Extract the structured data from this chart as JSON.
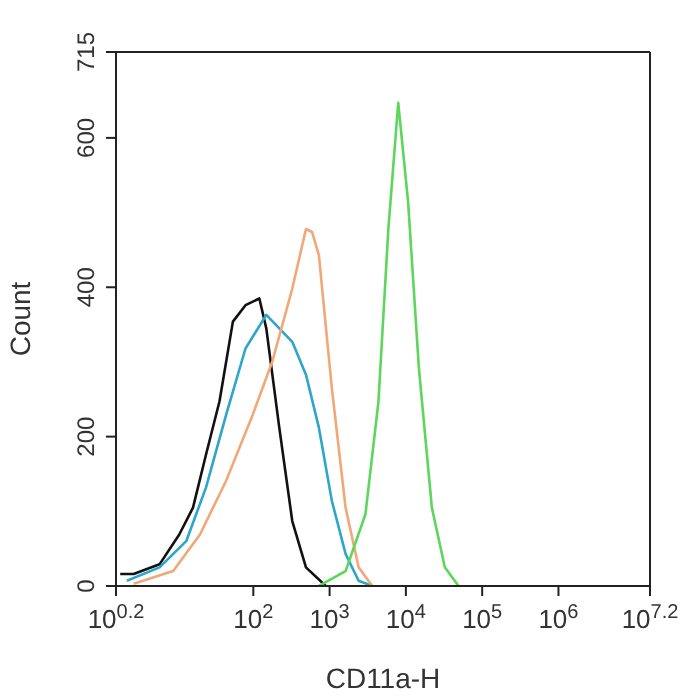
{
  "chart_data": {
    "type": "line",
    "xlabel": "CD11a-H",
    "ylabel": "Count",
    "log": "x",
    "marker": "none",
    "line_style": "solid",
    "xlim": [
      1.585,
      15849000
    ],
    "xticks": [
      {
        "value": 1.585,
        "label": "10$^{0.2}$"
      },
      {
        "value": 100,
        "label": "10$^{2}$"
      },
      {
        "value": 1000,
        "label": "10$^{3}$"
      },
      {
        "value": 10000,
        "label": "10$^{4}$"
      },
      {
        "value": 100000,
        "label": "10$^{5}$"
      },
      {
        "value": 1000000,
        "label": "10$^{6}$"
      },
      {
        "value": 15849000,
        "label": "10$^{7.2}$"
      }
    ],
    "ylim": [
      0,
      715
    ],
    "yticks": [
      0,
      200,
      400,
      600,
      715
    ],
    "series": [
      {
        "color": "#111111",
        "x": [
          1.8,
          2.7,
          5.9,
          10.7,
          16.2,
          24,
          36,
          54,
          79,
          120,
          148,
          219,
          324,
          490,
          891
        ],
        "values": [
          16,
          16,
          29,
          69,
          105,
          176,
          247,
          354,
          376,
          385,
          345,
          212,
          87,
          25,
          0
        ]
      },
      {
        "color": "#2ea6c9",
        "x": [
          2.2,
          5.9,
          13.2,
          24,
          44,
          79,
          148,
          219,
          324,
          490,
          724,
          1070,
          1620,
          2400,
          3630
        ],
        "values": [
          7,
          25,
          60,
          132,
          229,
          318,
          363,
          345,
          327,
          283,
          212,
          114,
          43,
          7,
          0
        ]
      },
      {
        "color": "#f0a878",
        "x": [
          2.7,
          8.9,
          20,
          44,
          98,
          178,
          324,
          490,
          589,
          724,
          1070,
          1620,
          2400,
          3630
        ],
        "values": [
          3,
          20,
          69,
          141,
          229,
          301,
          398,
          478,
          474,
          443,
          265,
          105,
          25,
          0
        ]
      },
      {
        "color": "#5cd65c",
        "x": [
          724,
          1620,
          2950,
          4370,
          5890,
          7940,
          10700,
          14800,
          21900,
          32400,
          49000
        ],
        "values": [
          0,
          20,
          96,
          247,
          478,
          647,
          514,
          292,
          105,
          25,
          0
        ]
      }
    ]
  }
}
